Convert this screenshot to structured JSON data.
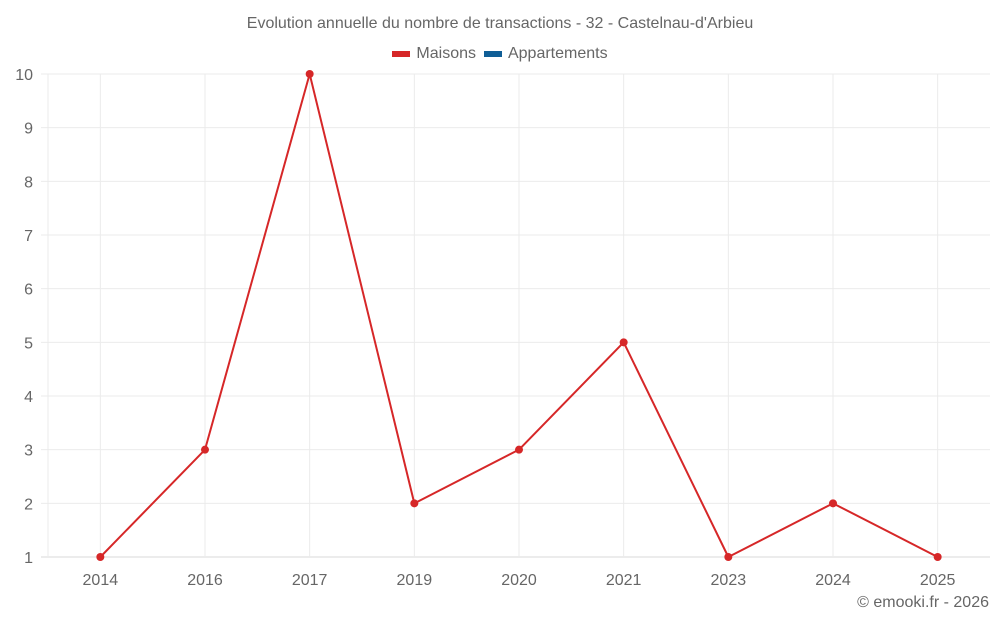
{
  "chart_data": {
    "type": "line",
    "title": "Evolution annuelle du nombre de transactions - 32 - Castelnau-d'Arbieu",
    "categories": [
      "2014",
      "2016",
      "2017",
      "2019",
      "2020",
      "2021",
      "2023",
      "2024",
      "2025"
    ],
    "series": [
      {
        "name": "Maisons",
        "color": "#d62728",
        "values": [
          1,
          3,
          10,
          2,
          3,
          5,
          1,
          2,
          1
        ]
      },
      {
        "name": "Appartements",
        "color": "#0f5e96",
        "values": []
      }
    ],
    "xlabel": "",
    "ylabel": "",
    "ylim": [
      1,
      10
    ],
    "yticks": [
      1,
      2,
      3,
      4,
      5,
      6,
      7,
      8,
      9,
      10
    ],
    "grid": true,
    "legend_position": "top-center"
  },
  "legend": {
    "items": [
      {
        "label": "Maisons",
        "color": "#d62728"
      },
      {
        "label": "Appartements",
        "color": "#0f5e96"
      }
    ]
  },
  "credit": "© emooki.fr - 2026"
}
